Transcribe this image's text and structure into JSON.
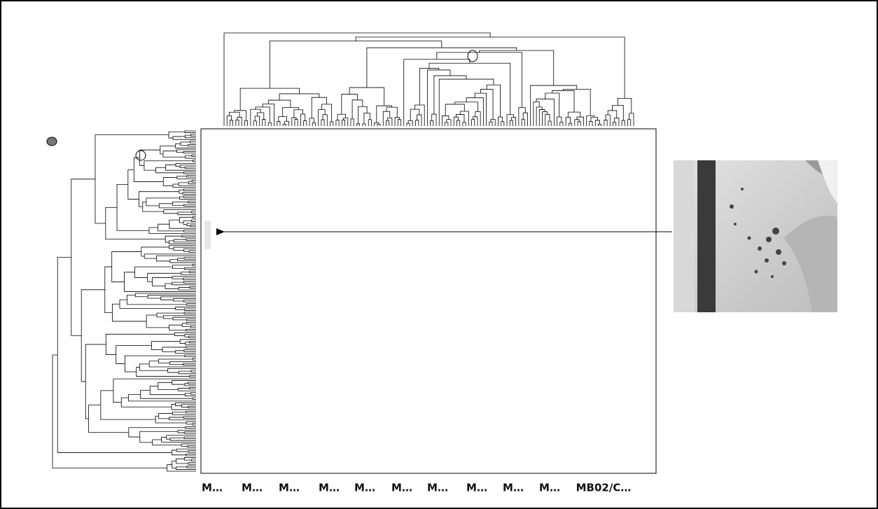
{
  "column_labels": [
    "M…",
    "M…",
    "M…",
    "M…",
    "M…",
    "M…",
    "M…",
    "M…",
    "M…",
    "M…",
    "MB02/C…"
  ]
}
